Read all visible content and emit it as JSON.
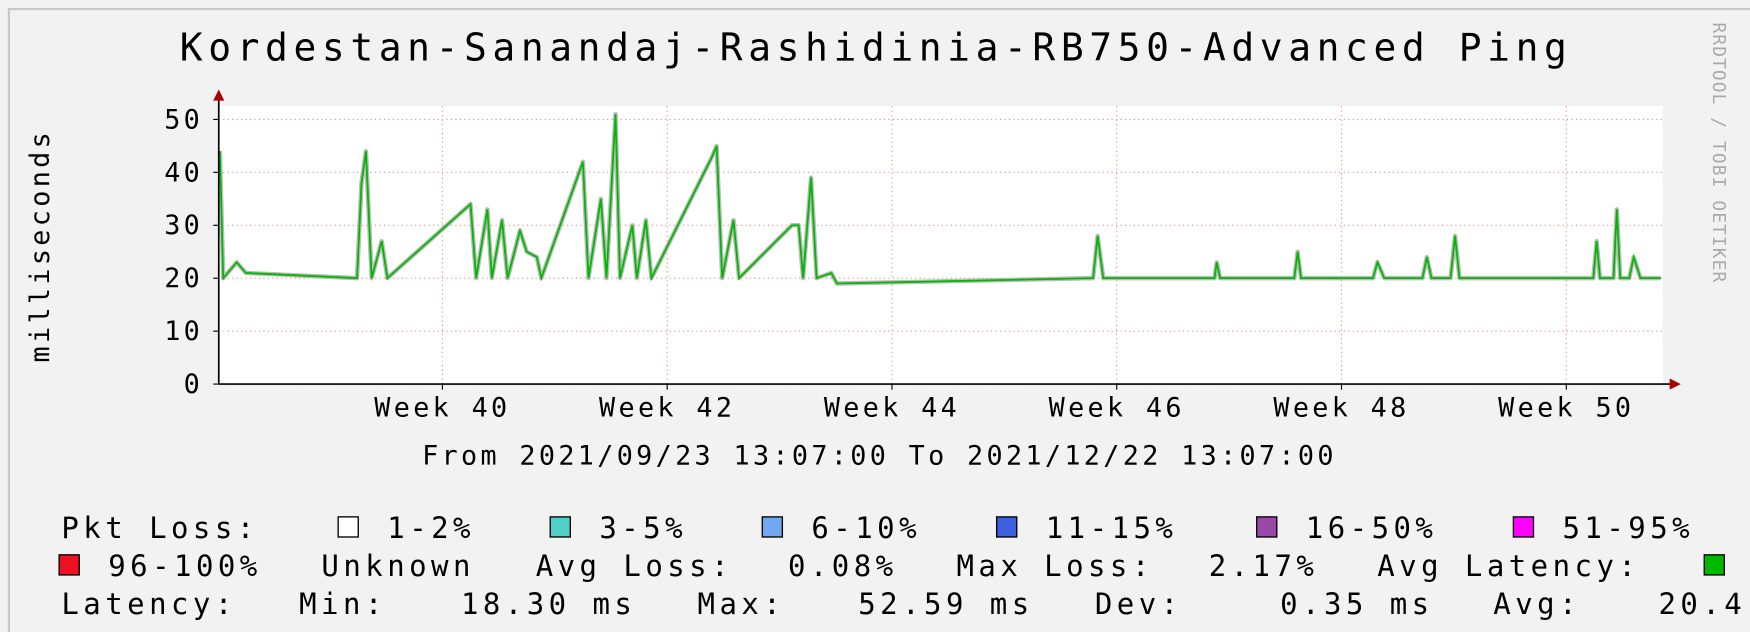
{
  "chart_data": {
    "type": "line",
    "title": "Kordestan-Sanandaj-Rashidinia-RB750-Advanced Ping",
    "subtitle": "From 2021/09/23 13:07:00 To 2021/12/22 13:07:00",
    "y_label": "milliseconds",
    "watermark": "RRDTOOL / TOBI OETIKER",
    "x": [
      38.52,
      38.55,
      38.67,
      38.75,
      39.74,
      39.78,
      39.82,
      39.87,
      39.96,
      40.01,
      40.75,
      40.8,
      40.9,
      40.94,
      41.03,
      41.08,
      41.19,
      41.25,
      41.34,
      41.38,
      41.75,
      41.8,
      41.91,
      41.96,
      42.04,
      42.08,
      42.19,
      42.23,
      42.31,
      42.36,
      42.9,
      42.94,
      42.99,
      43.09,
      43.14,
      43.61,
      43.67,
      43.71,
      43.78,
      43.83,
      43.96,
      44.01,
      46.29,
      46.33,
      46.38,
      47.37,
      47.39,
      47.42,
      48.08,
      48.11,
      48.14,
      48.78,
      48.82,
      48.88,
      49.22,
      49.26,
      49.3,
      49.47,
      49.51,
      49.55,
      50.74,
      50.77,
      50.8,
      50.92,
      50.95,
      50.98,
      51.06,
      51.1,
      51.16,
      51.34
    ],
    "series": [
      {
        "name": "Avg Latency:",
        "color": "#00b800",
        "values": [
          44,
          20,
          23,
          21,
          20,
          38,
          44,
          20,
          27,
          20,
          34,
          20,
          33,
          20,
          31,
          20,
          29,
          25,
          24,
          20,
          42,
          20,
          35,
          20,
          51,
          20,
          30,
          20,
          31,
          20,
          43,
          45,
          20,
          31,
          20,
          30,
          30,
          20,
          39,
          20,
          21,
          19,
          20,
          28,
          20,
          20,
          23,
          20,
          20,
          25,
          20,
          20,
          23,
          20,
          20,
          24,
          20,
          20,
          28,
          20,
          20,
          27,
          20,
          20,
          33,
          20,
          20,
          24,
          20,
          20
        ]
      }
    ],
    "xlim": [
      38.51,
      51.36
    ],
    "xticks": [
      {
        "value": 40.5,
        "label": "Week 40"
      },
      {
        "value": 42.5,
        "label": "Week 42"
      },
      {
        "value": 44.5,
        "label": "Week 44"
      },
      {
        "value": 46.5,
        "label": "Week 46"
      },
      {
        "value": 48.5,
        "label": "Week 48"
      },
      {
        "value": 50.5,
        "label": "Week 50"
      }
    ],
    "ylim": [
      0,
      52.5
    ],
    "yticks": [
      0,
      10,
      20,
      30,
      40,
      50
    ],
    "grid": true,
    "legend": {
      "loss_title": "Pkt Loss:",
      "loss_levels": [
        {
          "name": "1-2%",
          "color": "#ffffff"
        },
        {
          "name": "3-5%",
          "color": "#4fd0c8"
        },
        {
          "name": "6-10%",
          "color": "#6faaf0"
        },
        {
          "name": "11-15%",
          "color": "#3c5fe0"
        },
        {
          "name": "16-50%",
          "color": "#9a48a8"
        },
        {
          "name": "51-95%",
          "color": "#ff00ff"
        },
        {
          "name": "96-100%",
          "color": "#ee1122"
        }
      ],
      "unknown": "Unknown",
      "loss_stats": [
        {
          "label": "Avg Loss:",
          "value": "0.08%"
        },
        {
          "label": "Max Loss:",
          "value": "2.17%"
        }
      ],
      "latency_title": "Latency:",
      "latency_stats": [
        {
          "label": "Min:",
          "value": "18.30 ms"
        },
        {
          "label": "Max:",
          "value": "52.59 ms"
        },
        {
          "label": "Dev:",
          "value": "0.35 ms"
        },
        {
          "label": "Avg:",
          "value": "20.4"
        }
      ]
    }
  }
}
